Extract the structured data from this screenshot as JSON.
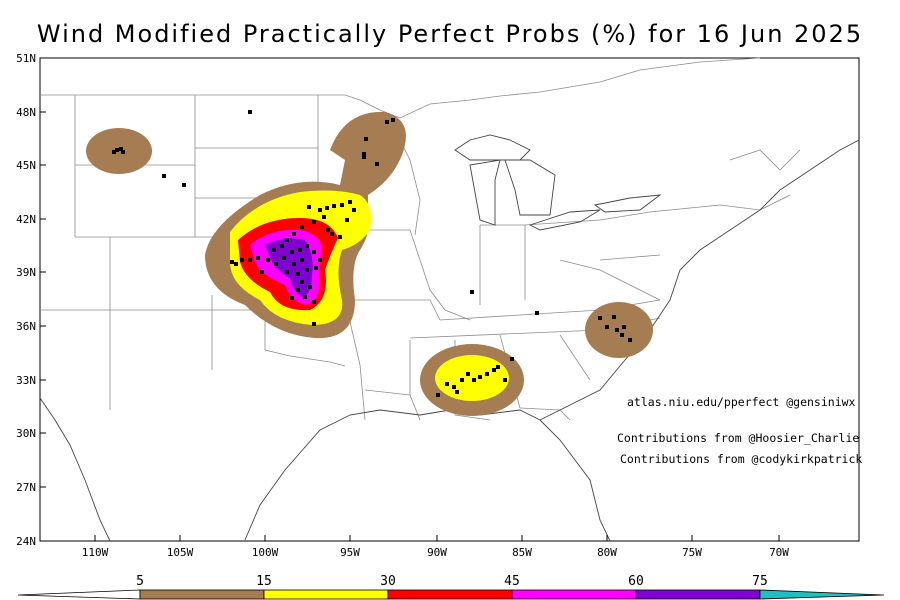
{
  "title": "Wind Modified Practically Perfect Probs (%) for 16 Jun 2025",
  "lat_labels": [
    "51N",
    "48N",
    "45N",
    "42N",
    "39N",
    "36N",
    "33N",
    "30N",
    "27N",
    "24N"
  ],
  "lon_labels": [
    "110W",
    "105W",
    "100W",
    "95W",
    "90W",
    "85W",
    "80W",
    "75W",
    "70W"
  ],
  "colorbar": {
    "levels": [
      "5",
      "15",
      "30",
      "45",
      "60",
      "75"
    ],
    "colors": [
      "#a67c52",
      "#ffff00",
      "#ff0000",
      "#ff00ff",
      "#8000d0",
      "#20c0c0"
    ]
  },
  "credits": {
    "site": "atlas.niu.edu/pperfect @gensiniwx",
    "contrib1": "Contributions from @Hoosier_Charlie",
    "contrib2": "Contributions from @codykirkpatrick"
  }
}
